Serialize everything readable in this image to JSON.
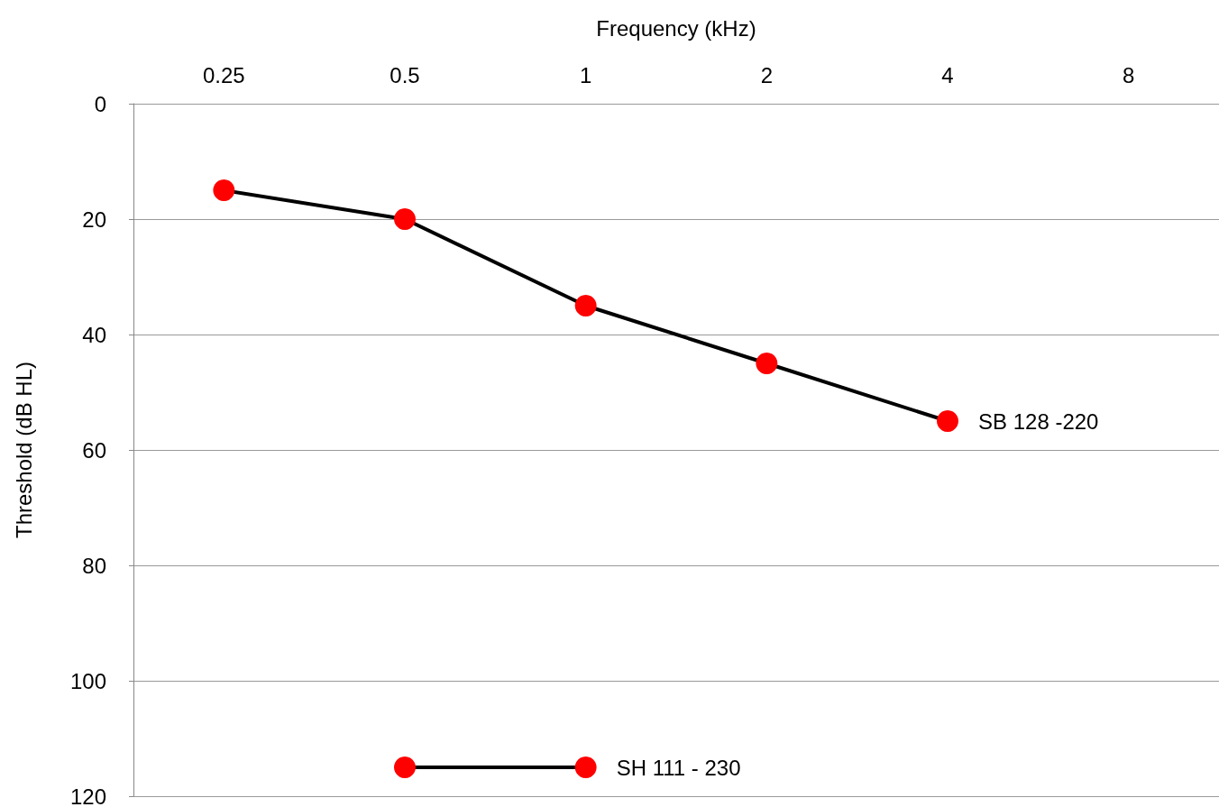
{
  "chart_data": {
    "type": "line",
    "xlabel": "Frequency (kHz)",
    "ylabel": "Threshold (dB HL)",
    "categories": [
      "0.25",
      "0.5",
      "1",
      "2",
      "4",
      "8"
    ],
    "series": [
      {
        "name": "SB 128 -220",
        "color": "#000000",
        "colors": [
          "#ff0000",
          "#ff0000",
          "#ff0000",
          "#ff0000",
          "#ff0000",
          "#ff0000"
        ],
        "values": [
          15,
          20,
          35,
          45,
          55,
          null
        ]
      },
      {
        "name": "SH 111 - 230",
        "color": "#000000",
        "colors": [
          "#ff0000",
          "#ff0000",
          "#ff0000",
          "#ff0000",
          "#ff0000",
          "#ff0000"
        ],
        "values": [
          null,
          115,
          115,
          null,
          null,
          null
        ]
      }
    ],
    "ylim": [
      120,
      0
    ],
    "yticks": [
      0,
      20,
      40,
      60,
      80,
      100,
      120
    ],
    "grid": "y",
    "marker": "circle",
    "line_style": "solid"
  }
}
